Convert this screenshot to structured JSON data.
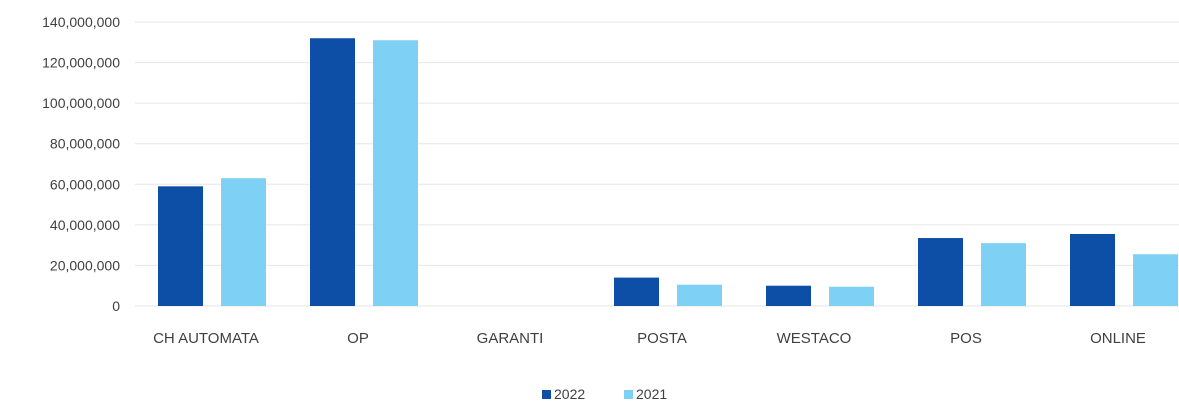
{
  "chart_data": {
    "type": "bar",
    "title": "",
    "xlabel": "",
    "ylabel": "",
    "categories": [
      "CH AUTOMATA",
      "OP",
      "GARANTI",
      "POSTA",
      "WESTACO",
      "POS",
      "ONLINE"
    ],
    "series": [
      {
        "name": "2022",
        "color": "#0d4ea6",
        "values": [
          59000000,
          132000000,
          0,
          14000000,
          10000000,
          33500000,
          35500000
        ]
      },
      {
        "name": "2021",
        "color": "#7fd0f5",
        "values": [
          63000000,
          131000000,
          0,
          10500000,
          9500000,
          31000000,
          25500000
        ]
      }
    ],
    "y_ticks": [
      "0",
      "20,000,000",
      "40,000,000",
      "60,000,000",
      "80,000,000",
      "100,000,000",
      "120,000,000",
      "140,000,000"
    ],
    "y_tick_values": [
      0,
      20000000,
      40000000,
      60000000,
      80000000,
      100000000,
      120000000,
      140000000
    ],
    "ylim": [
      0,
      140000000
    ],
    "grid": true,
    "legend_position": "bottom-center"
  }
}
